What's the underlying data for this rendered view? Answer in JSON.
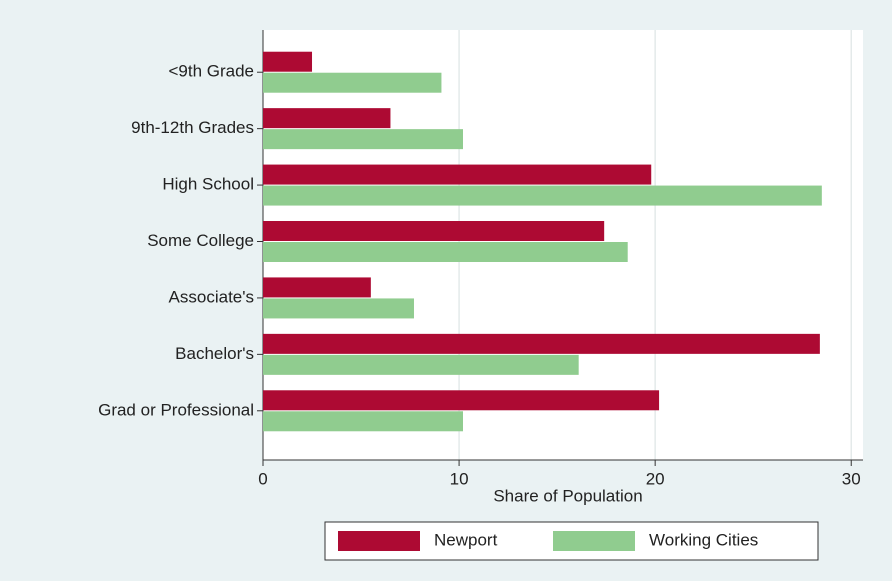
{
  "chart_data": {
    "type": "bar",
    "orientation": "horizontal",
    "x_label": "Share of Population",
    "categories": [
      "<9th Grade",
      "9th-12th Grades",
      "High School",
      "Some College",
      "Associate's",
      "Bachelor's",
      "Grad or Professional"
    ],
    "series": [
      {
        "name": "Newport",
        "color": "#ad0a33",
        "values": [
          2.5,
          6.5,
          19.8,
          17.4,
          5.5,
          28.4,
          20.2
        ]
      },
      {
        "name": "Working Cities",
        "color": "#90cc8f",
        "values": [
          9.1,
          10.2,
          28.5,
          18.6,
          7.7,
          16.1,
          10.2
        ]
      }
    ],
    "xlim": [
      0,
      30.6
    ],
    "xticks": [
      0,
      10,
      20,
      30
    ],
    "grid": true
  }
}
